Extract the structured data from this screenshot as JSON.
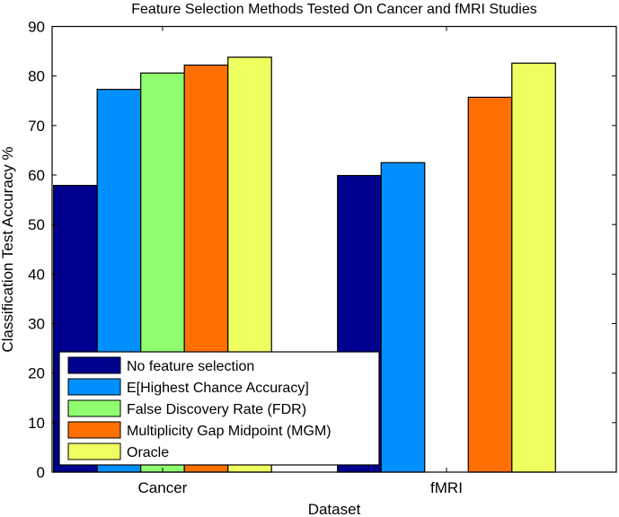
{
  "chart_data": {
    "type": "bar",
    "title": "Feature Selection Methods Tested On Cancer and fMRI Studies",
    "xlabel": "Dataset",
    "ylabel": "Classification Test Accuracy %",
    "ylim": [
      0,
      90
    ],
    "yticks": [
      0,
      10,
      20,
      30,
      40,
      50,
      60,
      70,
      80,
      90
    ],
    "categories": [
      "Cancer",
      "fMRI"
    ],
    "grid": false,
    "legend_position": "bottom-left",
    "series": [
      {
        "name": "No feature selection",
        "color": "#00008f",
        "values": [
          57.9,
          59.9
        ]
      },
      {
        "name": "E[Highest Chance Accuracy]",
        "color": "#008fff",
        "values": [
          77.3,
          62.5
        ]
      },
      {
        "name": "False Discovery Rate (FDR)",
        "color": "#8fff70",
        "values": [
          80.6,
          null
        ]
      },
      {
        "name": "Multiplicity Gap Midpoint (MGM)",
        "color": "#ff7000",
        "values": [
          82.2,
          75.7
        ]
      },
      {
        "name": "Oracle",
        "color": "#efff60",
        "values": [
          83.8,
          82.6
        ]
      }
    ]
  }
}
